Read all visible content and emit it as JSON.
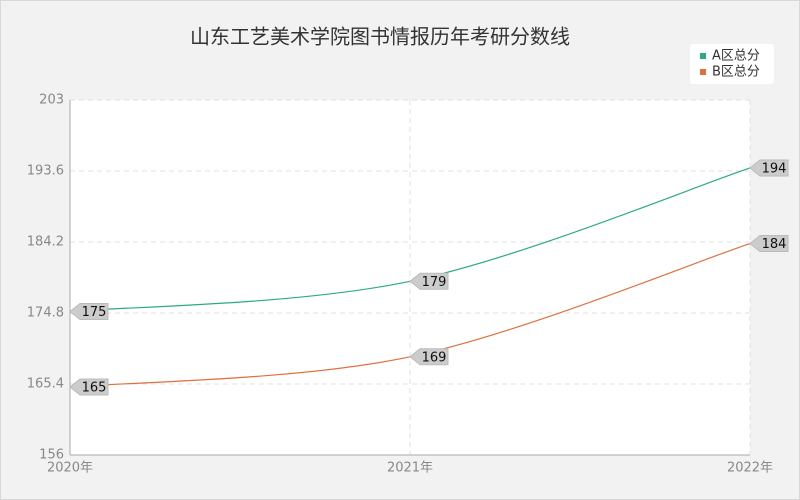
{
  "chart_data": {
    "type": "line",
    "title": "山东工艺美术学院图书情报历年考研分数线",
    "categories": [
      "2020年",
      "2021年",
      "2022年"
    ],
    "series": [
      {
        "name": "A区总分",
        "color": "#2bab80",
        "values": [
          175,
          179,
          194
        ]
      },
      {
        "name": "B区总分",
        "color": "#e0703f",
        "values": [
          165,
          169,
          184
        ]
      }
    ],
    "ylim": [
      156,
      203
    ],
    "yticks": [
      156,
      165.4,
      174.8,
      184.2,
      193.6,
      203
    ],
    "grid": true,
    "legend": "top-right"
  }
}
